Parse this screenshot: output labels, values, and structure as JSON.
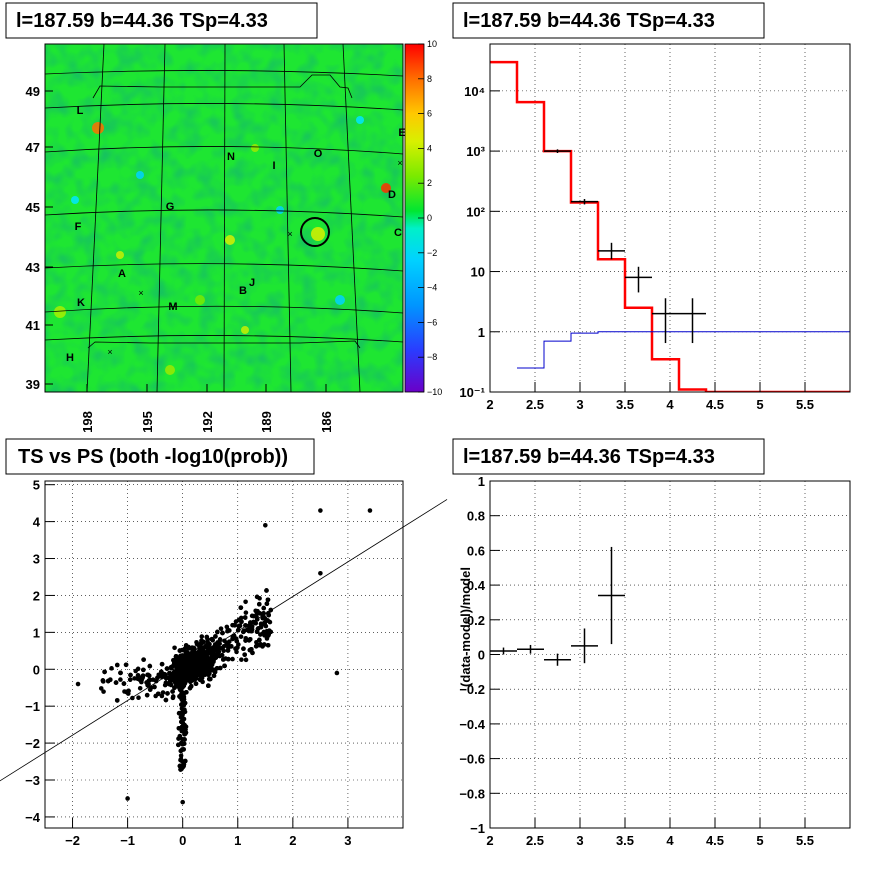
{
  "chart_data": [
    {
      "id": "skymap",
      "type": "heatmap",
      "title": "l=187.59 b=44.36 TSp=4.33",
      "x_ticks": [
        "198",
        "195",
        "192",
        "189",
        "186"
      ],
      "y_ticks": [
        "39",
        "41",
        "43",
        "45",
        "47",
        "49"
      ],
      "colorbar": {
        "min": -10,
        "max": 10,
        "ticks": [
          "10",
          "8",
          "6",
          "4",
          "2",
          "0",
          "−2",
          "−4",
          "−6",
          "−8",
          "−10"
        ]
      },
      "source_labels": [
        {
          "text": "L"
        },
        {
          "text": "E"
        },
        {
          "text": "N"
        },
        {
          "text": "O"
        },
        {
          "text": "I"
        },
        {
          "text": "D"
        },
        {
          "text": "G"
        },
        {
          "text": "F"
        },
        {
          "text": "C"
        },
        {
          "text": "A"
        },
        {
          "text": "J"
        },
        {
          "text": "B"
        },
        {
          "text": "K"
        },
        {
          "text": "M"
        },
        {
          "text": "H"
        }
      ]
    },
    {
      "id": "spectrum",
      "type": "line",
      "title": "l=187.59 b=44.36 TSp=4.33",
      "xlim": [
        2,
        6
      ],
      "ylim_log": [
        0.1,
        60000
      ],
      "y_scale": "log",
      "x_ticks": [
        "2",
        "2.5",
        "3",
        "3.5",
        "4",
        "4.5",
        "5",
        "5.5"
      ],
      "y_ticks": [
        "10⁻¹",
        "1",
        "10",
        "10²",
        "10³",
        "10⁴"
      ],
      "series": [
        {
          "color": "#ff0000",
          "style": "step",
          "edges": [
            2.0,
            2.3,
            2.6,
            2.9,
            3.2,
            3.5,
            3.8,
            4.1,
            4.4,
            6.0
          ],
          "values": [
            30000,
            6500,
            1000,
            140,
            16,
            2.5,
            0.35,
            0.11,
            0.1
          ]
        },
        {
          "color": "#0000cc",
          "style": "step",
          "edges": [
            2.3,
            2.6,
            2.9,
            3.2,
            6.0
          ],
          "values": [
            0.25,
            0.7,
            0.95,
            1.0
          ]
        },
        {
          "color": "#000000",
          "style": "errorbars",
          "points": [
            {
              "x": 2.75,
              "xerr": 0.15,
              "y": 1000,
              "ylo": 930,
              "yhi": 1070
            },
            {
              "x": 3.05,
              "xerr": 0.15,
              "y": 145,
              "ylo": 130,
              "yhi": 160
            },
            {
              "x": 3.35,
              "xerr": 0.15,
              "y": 22,
              "ylo": 16,
              "yhi": 30
            },
            {
              "x": 3.65,
              "xerr": 0.15,
              "y": 8,
              "ylo": 4.5,
              "yhi": 12
            },
            {
              "x": 3.95,
              "xerr": 0.15,
              "y": 2,
              "ylo": 0.65,
              "yhi": 3.6
            },
            {
              "x": 4.25,
              "xerr": 0.15,
              "y": 2,
              "ylo": 0.65,
              "yhi": 3.6
            }
          ]
        }
      ]
    },
    {
      "id": "ts-vs-ps",
      "type": "scatter",
      "title": "TS vs PS (both -log10(prob))",
      "xlim": [
        -2.5,
        4
      ],
      "ylim": [
        -4.3,
        5.1
      ],
      "x_ticks": [
        "−2",
        "−1",
        "0",
        "1",
        "2",
        "3"
      ],
      "y_ticks": [
        "−4",
        "−3",
        "−2",
        "−1",
        "0",
        "1",
        "2",
        "3",
        "4",
        "5"
      ],
      "reference_line": {
        "x0": -3.4,
        "y0": -3.1,
        "x1": 4.8,
        "y1": 4.6
      },
      "notable_points": [
        {
          "x": 3.4,
          "y": 4.3
        },
        {
          "x": 2.5,
          "y": 4.3
        },
        {
          "x": 1.5,
          "y": 3.9
        },
        {
          "x": -1.9,
          "y": -0.4
        },
        {
          "x": -1.0,
          "y": -3.5
        },
        {
          "x": 0.0,
          "y": -3.6
        },
        {
          "x": 2.8,
          "y": -0.1
        },
        {
          "x": 2.5,
          "y": 2.6
        }
      ]
    },
    {
      "id": "residuals",
      "type": "scatter",
      "title": "l=187.59 b=44.36 TSp=4.33",
      "ylabel": "(data-model)/model",
      "xlim": [
        2,
        6
      ],
      "ylim": [
        -1,
        1
      ],
      "x_ticks": [
        "2",
        "2.5",
        "3",
        "3.5",
        "4",
        "4.5",
        "5",
        "5.5"
      ],
      "y_ticks": [
        "−1",
        "−0.8",
        "−0.6",
        "−0.4",
        "−0.2",
        "0",
        "0.2",
        "0.4",
        "0.6",
        "0.8",
        "1"
      ],
      "points": [
        {
          "x": 2.15,
          "xerr": 0.15,
          "y": 0.02,
          "yerr": 0.02
        },
        {
          "x": 2.45,
          "xerr": 0.15,
          "y": 0.03,
          "yerr": 0.025
        },
        {
          "x": 2.75,
          "xerr": 0.15,
          "y": -0.03,
          "yerr": 0.035
        },
        {
          "x": 3.05,
          "xerr": 0.15,
          "y": 0.05,
          "yerr": 0.1
        },
        {
          "x": 3.35,
          "xerr": 0.15,
          "y": 0.34,
          "yerr": 0.28
        }
      ]
    }
  ]
}
